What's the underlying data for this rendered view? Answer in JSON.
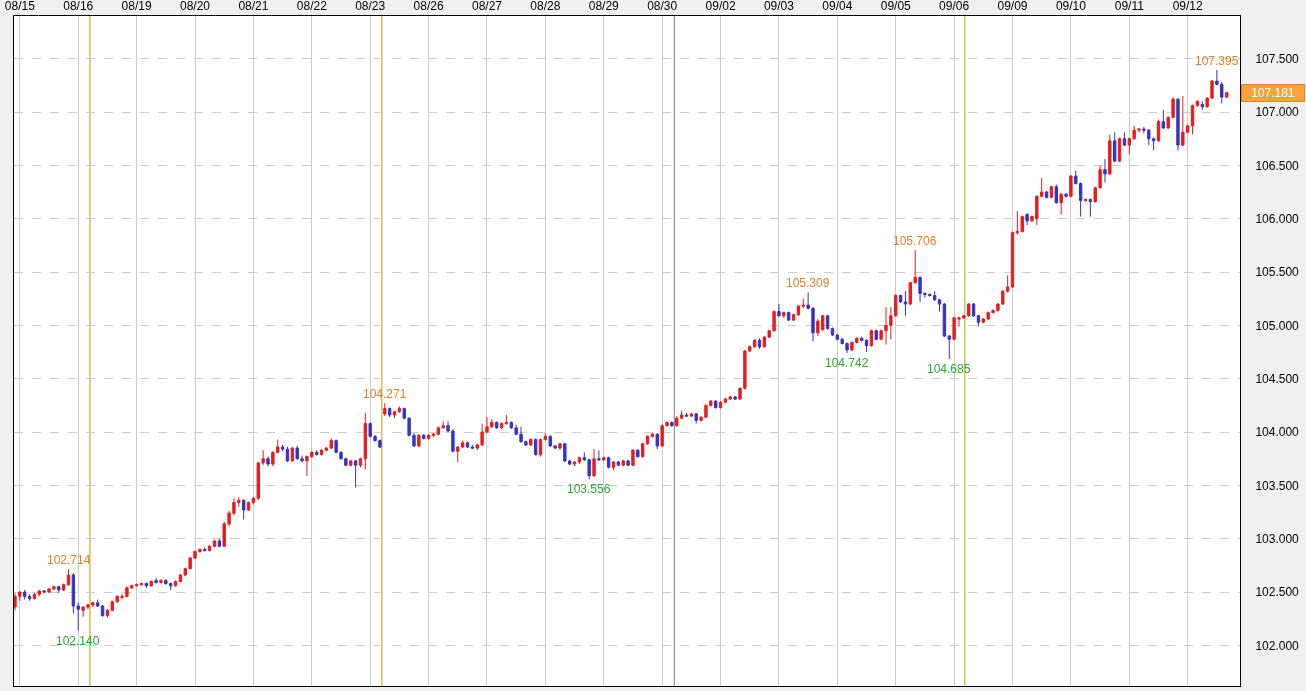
{
  "chart_data": {
    "type": "candlestick",
    "categories": [
      null,
      "08/15",
      null,
      null,
      null,
      null,
      null,
      null,
      null,
      null,
      null,
      null,
      null,
      "08/16",
      null,
      null,
      null,
      null,
      null,
      null,
      null,
      null,
      null,
      null,
      null,
      "08/19",
      null,
      null,
      null,
      null,
      null,
      null,
      null,
      null,
      null,
      null,
      null,
      "08/20",
      null,
      null,
      null,
      null,
      null,
      null,
      null,
      null,
      null,
      null,
      null,
      "08/21",
      null,
      null,
      null,
      null,
      null,
      null,
      null,
      null,
      null,
      null,
      null,
      "08/22",
      null,
      null,
      null,
      null,
      null,
      null,
      null,
      null,
      null,
      null,
      null,
      "08/23",
      null,
      null,
      null,
      null,
      null,
      null,
      null,
      null,
      null,
      null,
      null,
      "08/26",
      null,
      null,
      null,
      null,
      null,
      null,
      null,
      null,
      null,
      null,
      null,
      "08/27",
      null,
      null,
      null,
      null,
      null,
      null,
      null,
      null,
      null,
      null,
      null,
      "08/28",
      null,
      null,
      null,
      null,
      null,
      null,
      null,
      null,
      null,
      null,
      null,
      "08/29",
      null,
      null,
      null,
      null,
      null,
      null,
      null,
      null,
      null,
      null,
      null,
      "08/30",
      null,
      null,
      null,
      null,
      null,
      null,
      null,
      null,
      null,
      null,
      null,
      "09/02",
      null,
      null,
      null,
      null,
      null,
      null,
      null,
      null,
      null,
      null,
      null,
      "09/03",
      null,
      null,
      null,
      null,
      null,
      null,
      null,
      null,
      null,
      null,
      null,
      "09/04",
      null,
      null,
      null,
      null,
      null,
      null,
      null,
      null,
      null,
      null,
      null,
      "09/05",
      null,
      null,
      null,
      null,
      null,
      null,
      null,
      null,
      null,
      null,
      null,
      "09/06",
      null,
      null,
      null,
      null,
      null,
      null,
      null,
      null,
      null,
      null,
      null,
      "09/09",
      null,
      null,
      null,
      null,
      null,
      null,
      null,
      null,
      null,
      null,
      null,
      "09/10",
      null,
      null,
      null,
      null,
      null,
      null,
      null,
      null,
      null,
      null,
      null,
      "09/11",
      null,
      null,
      null,
      null,
      null,
      null,
      null,
      null,
      null,
      null,
      null,
      "09/12",
      null,
      null,
      null,
      null,
      null,
      null,
      null,
      null
    ],
    "ohlc": [
      [
        102.36,
        102.49,
        102.33,
        102.46
      ],
      [
        102.46,
        102.51,
        102.42,
        102.5
      ],
      [
        102.5,
        102.52,
        102.43,
        102.46
      ],
      [
        102.46,
        102.48,
        102.42,
        102.44
      ],
      [
        102.44,
        102.49,
        102.43,
        102.48
      ],
      [
        102.48,
        102.52,
        102.46,
        102.51
      ],
      [
        102.51,
        102.52,
        102.49,
        102.5
      ],
      [
        102.5,
        102.54,
        102.49,
        102.53
      ],
      [
        102.53,
        102.56,
        102.52,
        102.55
      ],
      [
        102.55,
        102.56,
        102.49,
        102.52
      ],
      [
        102.52,
        102.58,
        102.51,
        102.57
      ],
      [
        102.57,
        102.714,
        102.56,
        102.66
      ],
      [
        102.66,
        102.68,
        102.3,
        102.37
      ],
      [
        102.37,
        102.4,
        102.14,
        102.34
      ],
      [
        102.33,
        102.37,
        102.27,
        102.36
      ],
      [
        102.36,
        102.39,
        102.34,
        102.38
      ],
      [
        102.38,
        102.41,
        102.36,
        102.4
      ],
      [
        102.4,
        102.43,
        102.36,
        102.37
      ],
      [
        102.37,
        102.38,
        102.27,
        102.28
      ],
      [
        102.28,
        102.34,
        102.26,
        102.33
      ],
      [
        102.33,
        102.42,
        102.32,
        102.41
      ],
      [
        102.41,
        102.47,
        102.4,
        102.46
      ],
      [
        102.45,
        102.48,
        102.43,
        102.46
      ],
      [
        102.46,
        102.55,
        102.45,
        102.54
      ],
      [
        102.54,
        102.57,
        102.53,
        102.56
      ],
      [
        102.56,
        102.58,
        102.55,
        102.57
      ],
      [
        102.57,
        102.59,
        102.56,
        102.58
      ],
      [
        102.58,
        102.59,
        102.54,
        102.56
      ],
      [
        102.56,
        102.61,
        102.55,
        102.6
      ],
      [
        102.61,
        102.63,
        102.58,
        102.59
      ],
      [
        102.59,
        102.62,
        102.58,
        102.61
      ],
      [
        102.61,
        102.62,
        102.57,
        102.58
      ],
      [
        102.58,
        102.59,
        102.52,
        102.56
      ],
      [
        102.56,
        102.61,
        102.55,
        102.6
      ],
      [
        102.6,
        102.67,
        102.59,
        102.66
      ],
      [
        102.66,
        102.73,
        102.65,
        102.72
      ],
      [
        102.72,
        102.83,
        102.71,
        102.82
      ],
      [
        102.82,
        102.89,
        102.81,
        102.88
      ],
      [
        102.88,
        102.91,
        102.87,
        102.9
      ],
      [
        102.9,
        102.92,
        102.88,
        102.89
      ],
      [
        102.89,
        102.94,
        102.88,
        102.93
      ],
      [
        102.93,
        102.99,
        102.92,
        102.98
      ],
      [
        102.98,
        103.0,
        102.92,
        102.93
      ],
      [
        102.93,
        103.16,
        102.92,
        103.14
      ],
      [
        103.14,
        103.26,
        103.12,
        103.24
      ],
      [
        103.24,
        103.38,
        103.22,
        103.34
      ],
      [
        103.34,
        103.39,
        103.3,
        103.36
      ],
      [
        103.36,
        103.37,
        103.18,
        103.27
      ],
      [
        103.27,
        103.35,
        103.26,
        103.34
      ],
      [
        103.34,
        103.39,
        103.32,
        103.38
      ],
      [
        103.38,
        103.72,
        103.36,
        103.71
      ],
      [
        103.71,
        103.83,
        103.69,
        103.75
      ],
      [
        103.75,
        103.77,
        103.68,
        103.7
      ],
      [
        103.7,
        103.82,
        103.68,
        103.81
      ],
      [
        103.81,
        103.93,
        103.8,
        103.86
      ],
      [
        103.86,
        103.88,
        103.82,
        103.84
      ],
      [
        103.84,
        103.86,
        103.72,
        103.73
      ],
      [
        103.73,
        103.86,
        103.72,
        103.85
      ],
      [
        103.85,
        103.87,
        103.74,
        103.75
      ],
      [
        103.75,
        103.78,
        103.72,
        103.73
      ],
      [
        103.73,
        103.78,
        103.59,
        103.77
      ],
      [
        103.77,
        103.82,
        103.76,
        103.81
      ],
      [
        103.81,
        103.83,
        103.78,
        103.79
      ],
      [
        103.79,
        103.84,
        103.78,
        103.83
      ],
      [
        103.83,
        103.86,
        103.82,
        103.85
      ],
      [
        103.85,
        103.94,
        103.84,
        103.92
      ],
      [
        103.92,
        103.93,
        103.8,
        103.81
      ],
      [
        103.81,
        103.82,
        103.74,
        103.75
      ],
      [
        103.75,
        103.76,
        103.68,
        103.69
      ],
      [
        103.69,
        103.74,
        103.68,
        103.73
      ],
      [
        103.73,
        103.74,
        103.48,
        103.69
      ],
      [
        103.69,
        103.76,
        103.67,
        103.75
      ],
      [
        103.75,
        104.18,
        103.65,
        104.08
      ],
      [
        104.08,
        104.09,
        103.95,
        103.96
      ],
      [
        103.96,
        103.97,
        103.91,
        103.92
      ],
      [
        103.92,
        103.93,
        103.85,
        103.86
      ],
      [
        104.17,
        104.271,
        104.15,
        104.22
      ],
      [
        104.22,
        104.23,
        104.14,
        104.16
      ],
      [
        104.16,
        104.2,
        104.13,
        104.19
      ],
      [
        104.19,
        104.24,
        104.18,
        104.22
      ],
      [
        104.22,
        104.23,
        104.12,
        104.13
      ],
      [
        104.13,
        104.14,
        103.96,
        103.97
      ],
      [
        103.97,
        103.99,
        103.86,
        103.87
      ],
      [
        103.87,
        103.98,
        103.86,
        103.97
      ],
      [
        103.97,
        103.98,
        103.93,
        103.94
      ],
      [
        103.94,
        103.98,
        103.93,
        103.97
      ],
      [
        103.97,
        103.99,
        103.95,
        103.98
      ],
      [
        103.98,
        104.05,
        103.97,
        104.04
      ],
      [
        104.04,
        104.1,
        104.03,
        104.06
      ],
      [
        104.06,
        104.1,
        104.0,
        104.01
      ],
      [
        104.01,
        104.03,
        103.81,
        103.82
      ],
      [
        103.82,
        103.87,
        103.72,
        103.86
      ],
      [
        103.86,
        103.92,
        103.85,
        103.9
      ],
      [
        103.9,
        103.91,
        103.85,
        103.86
      ],
      [
        103.86,
        103.88,
        103.84,
        103.85
      ],
      [
        103.85,
        103.89,
        103.83,
        103.88
      ],
      [
        103.88,
        104.08,
        103.87,
        104.0
      ],
      [
        104.0,
        104.14,
        103.99,
        104.05
      ],
      [
        104.05,
        104.12,
        104.04,
        104.09
      ],
      [
        104.09,
        104.1,
        104.03,
        104.04
      ],
      [
        104.04,
        104.09,
        104.03,
        104.08
      ],
      [
        104.08,
        104.16,
        104.07,
        104.09
      ],
      [
        104.09,
        104.1,
        104.03,
        104.04
      ],
      [
        104.04,
        104.07,
        103.97,
        103.98
      ],
      [
        103.98,
        104.05,
        103.9,
        103.91
      ],
      [
        103.91,
        103.92,
        103.87,
        103.88
      ],
      [
        103.88,
        103.94,
        103.87,
        103.93
      ],
      [
        103.93,
        103.94,
        103.78,
        103.79
      ],
      [
        103.79,
        103.94,
        103.77,
        103.93
      ],
      [
        103.93,
        103.99,
        103.92,
        103.96
      ],
      [
        103.96,
        103.97,
        103.86,
        103.87
      ],
      [
        103.87,
        103.88,
        103.84,
        103.85
      ],
      [
        103.85,
        103.9,
        103.83,
        103.89
      ],
      [
        103.89,
        103.9,
        103.72,
        103.73
      ],
      [
        103.73,
        103.74,
        103.69,
        103.7
      ],
      [
        103.7,
        103.73,
        103.68,
        103.72
      ],
      [
        103.72,
        103.77,
        103.7,
        103.76
      ],
      [
        103.76,
        103.81,
        103.73,
        103.74
      ],
      [
        103.74,
        103.75,
        103.556,
        103.59
      ],
      [
        103.59,
        103.84,
        103.58,
        103.75
      ],
      [
        103.75,
        103.83,
        103.73,
        103.74
      ],
      [
        103.74,
        103.77,
        103.73,
        103.76
      ],
      [
        103.76,
        103.77,
        103.66,
        103.67
      ],
      [
        103.67,
        103.73,
        103.64,
        103.72
      ],
      [
        103.72,
        103.73,
        103.68,
        103.69
      ],
      [
        103.69,
        103.74,
        103.68,
        103.73
      ],
      [
        103.73,
        103.74,
        103.68,
        103.69
      ],
      [
        103.69,
        103.84,
        103.68,
        103.83
      ],
      [
        103.83,
        103.84,
        103.76,
        103.77
      ],
      [
        103.77,
        103.9,
        103.76,
        103.89
      ],
      [
        103.89,
        103.97,
        103.88,
        103.96
      ],
      [
        103.96,
        103.99,
        103.95,
        103.98
      ],
      [
        103.98,
        103.99,
        103.84,
        103.87
      ],
      [
        103.87,
        104.07,
        103.86,
        104.06
      ],
      [
        104.06,
        104.1,
        104.05,
        104.09
      ],
      [
        104.09,
        104.1,
        104.05,
        104.06
      ],
      [
        104.06,
        104.15,
        104.05,
        104.13
      ],
      [
        104.13,
        104.2,
        104.12,
        104.16
      ],
      [
        104.16,
        104.18,
        104.14,
        104.15
      ],
      [
        104.15,
        104.18,
        104.14,
        104.17
      ],
      [
        104.17,
        104.18,
        104.08,
        104.11
      ],
      [
        104.11,
        104.15,
        104.1,
        104.14
      ],
      [
        104.14,
        104.26,
        104.13,
        104.25
      ],
      [
        104.25,
        104.3,
        104.24,
        104.29
      ],
      [
        104.29,
        104.3,
        104.22,
        104.23
      ],
      [
        104.23,
        104.29,
        104.22,
        104.28
      ],
      [
        104.28,
        104.32,
        104.27,
        104.31
      ],
      [
        104.31,
        104.34,
        104.3,
        104.33
      ],
      [
        104.33,
        104.34,
        104.3,
        104.31
      ],
      [
        104.31,
        104.42,
        104.3,
        104.41
      ],
      [
        104.41,
        104.77,
        104.4,
        104.76
      ],
      [
        104.76,
        104.81,
        104.75,
        104.8
      ],
      [
        104.8,
        104.87,
        104.79,
        104.86
      ],
      [
        104.86,
        104.88,
        104.78,
        104.8
      ],
      [
        104.8,
        104.9,
        104.79,
        104.89
      ],
      [
        104.89,
        104.96,
        104.88,
        104.95
      ],
      [
        104.95,
        105.14,
        104.94,
        105.13
      ],
      [
        105.13,
        105.2,
        105.08,
        105.09
      ],
      [
        105.09,
        105.13,
        105.07,
        105.12
      ],
      [
        105.12,
        105.13,
        105.04,
        105.05
      ],
      [
        105.05,
        105.11,
        105.04,
        105.1
      ],
      [
        105.1,
        105.19,
        105.09,
        105.18
      ],
      [
        105.18,
        105.25,
        105.16,
        105.19
      ],
      [
        105.19,
        105.309,
        105.15,
        105.16
      ],
      [
        105.16,
        105.17,
        104.85,
        104.93
      ],
      [
        104.93,
        105.06,
        104.9,
        105.04
      ],
      [
        104.96,
        105.1,
        104.95,
        105.09
      ],
      [
        105.09,
        105.1,
        104.96,
        104.97
      ],
      [
        104.97,
        104.98,
        104.9,
        104.91
      ],
      [
        104.91,
        104.92,
        104.86,
        104.87
      ],
      [
        104.87,
        104.88,
        104.82,
        104.83
      ],
      [
        104.83,
        104.84,
        104.742,
        104.77
      ],
      [
        104.77,
        104.85,
        104.76,
        104.84
      ],
      [
        104.84,
        104.89,
        104.83,
        104.88
      ],
      [
        104.88,
        104.89,
        104.85,
        104.86
      ],
      [
        104.86,
        104.87,
        104.75,
        104.81
      ],
      [
        104.81,
        104.96,
        104.8,
        104.95
      ],
      [
        104.95,
        104.96,
        104.86,
        104.87
      ],
      [
        104.87,
        104.96,
        104.86,
        104.95
      ],
      [
        104.95,
        105.17,
        104.82,
        105.0
      ],
      [
        105.0,
        105.17,
        104.87,
        105.09
      ],
      [
        105.09,
        105.29,
        105.08,
        105.28
      ],
      [
        105.28,
        105.29,
        105.21,
        105.22
      ],
      [
        105.22,
        105.32,
        105.09,
        105.2
      ],
      [
        105.2,
        105.41,
        105.19,
        105.4
      ],
      [
        105.4,
        105.706,
        105.39,
        105.45
      ],
      [
        105.45,
        105.46,
        105.22,
        105.3
      ],
      [
        105.3,
        105.31,
        105.26,
        105.29
      ],
      [
        105.29,
        105.3,
        105.27,
        105.28
      ],
      [
        105.28,
        105.32,
        105.23,
        105.24
      ],
      [
        105.24,
        105.25,
        105.13,
        105.2
      ],
      [
        105.2,
        105.21,
        104.89,
        104.9
      ],
      [
        104.9,
        104.91,
        104.685,
        104.87
      ],
      [
        104.87,
        105.08,
        104.86,
        105.07
      ],
      [
        105.06,
        105.08,
        104.99,
        105.07
      ],
      [
        105.07,
        105.1,
        105.06,
        105.09
      ],
      [
        105.09,
        105.21,
        105.08,
        105.2
      ],
      [
        105.2,
        105.21,
        105.08,
        105.09
      ],
      [
        105.09,
        105.1,
        104.99,
        105.03
      ],
      [
        105.03,
        105.07,
        105.02,
        105.06
      ],
      [
        105.06,
        105.13,
        105.05,
        105.12
      ],
      [
        105.12,
        105.15,
        105.11,
        105.14
      ],
      [
        105.14,
        105.21,
        105.13,
        105.2
      ],
      [
        105.2,
        105.33,
        105.19,
        105.32
      ],
      [
        105.32,
        105.47,
        105.31,
        105.36
      ],
      [
        105.36,
        105.88,
        105.35,
        105.87
      ],
      [
        105.87,
        106.07,
        105.85,
        105.88
      ],
      [
        105.88,
        106.03,
        105.87,
        106.02
      ],
      [
        106.04,
        106.05,
        105.94,
        105.98
      ],
      [
        105.98,
        106.03,
        105.97,
        106.02
      ],
      [
        106.0,
        106.22,
        105.94,
        106.21
      ],
      [
        106.21,
        106.38,
        106.2,
        106.25
      ],
      [
        106.25,
        106.26,
        106.19,
        106.2
      ],
      [
        106.2,
        106.31,
        106.19,
        106.3
      ],
      [
        106.3,
        106.32,
        106.14,
        106.15
      ],
      [
        106.15,
        106.24,
        106.04,
        106.23
      ],
      [
        106.23,
        106.24,
        106.2,
        106.21
      ],
      [
        106.21,
        106.41,
        106.2,
        106.4
      ],
      [
        106.4,
        106.45,
        106.32,
        106.33
      ],
      [
        106.33,
        106.34,
        106.02,
        106.17
      ],
      [
        106.17,
        106.19,
        106.16,
        106.18
      ],
      [
        106.18,
        106.19,
        106.02,
        106.16
      ],
      [
        106.16,
        106.3,
        106.15,
        106.29
      ],
      [
        106.29,
        106.5,
        106.28,
        106.46
      ],
      [
        106.46,
        106.56,
        106.34,
        106.42
      ],
      [
        106.42,
        106.79,
        106.41,
        106.73
      ],
      [
        106.73,
        106.81,
        106.53,
        106.54
      ],
      [
        106.54,
        106.76,
        106.53,
        106.75
      ],
      [
        106.75,
        106.81,
        106.68,
        106.69
      ],
      [
        106.69,
        106.76,
        106.6,
        106.75
      ],
      [
        106.75,
        106.87,
        106.74,
        106.83
      ],
      [
        106.83,
        106.85,
        106.81,
        106.84
      ],
      [
        106.84,
        106.86,
        106.8,
        106.83
      ],
      [
        106.83,
        106.84,
        106.69,
        106.75
      ],
      [
        106.75,
        106.76,
        106.64,
        106.73
      ],
      [
        106.73,
        106.93,
        106.72,
        106.91
      ],
      [
        106.91,
        107.02,
        106.84,
        106.85
      ],
      [
        106.85,
        106.96,
        106.84,
        106.95
      ],
      [
        106.95,
        107.14,
        106.94,
        107.12
      ],
      [
        107.12,
        107.13,
        106.64,
        106.69
      ],
      [
        106.69,
        107.15,
        106.68,
        106.81
      ],
      [
        106.81,
        106.88,
        106.8,
        106.87
      ],
      [
        106.87,
        107.07,
        106.79,
        107.06
      ],
      [
        107.06,
        107.11,
        107.05,
        107.1
      ],
      [
        107.07,
        107.1,
        107.02,
        107.05
      ],
      [
        107.05,
        107.14,
        107.04,
        107.13
      ],
      [
        107.13,
        107.3,
        107.12,
        107.29
      ],
      [
        107.29,
        107.395,
        107.25,
        107.26
      ],
      [
        107.26,
        107.28,
        107.08,
        107.14
      ],
      [
        107.14,
        107.19,
        107.13,
        107.181
      ]
    ],
    "colors": [
      "#e41e1e",
      "#e41e1e",
      "#3434c4",
      "#3434c4",
      "#e41e1e",
      "#e41e1e",
      "#3434c4",
      "#e41e1e",
      "#e41e1e",
      "#3434c4",
      "#e41e1e",
      "#e41e1e",
      "#3434c4",
      "#3434c4",
      "#e41e1e",
      "#e41e1e",
      "#e41e1e",
      "#3434c4",
      "#3434c4",
      "#e41e1e",
      "#e41e1e",
      "#e41e1e",
      "#e41e1e",
      "#e41e1e",
      "#e41e1e",
      "#e41e1e",
      "#e41e1e",
      "#3434c4",
      "#e41e1e",
      "#3434c4",
      "#e41e1e",
      "#3434c4",
      "#3434c4",
      "#e41e1e",
      "#e41e1e",
      "#e41e1e",
      "#e41e1e",
      "#e41e1e",
      "#e41e1e",
      "#3434c4",
      "#e41e1e",
      "#e41e1e",
      "#3434c4",
      "#e41e1e",
      "#e41e1e",
      "#e41e1e",
      "#e41e1e",
      "#3434c4",
      "#e41e1e",
      "#e41e1e",
      "#e41e1e",
      "#e41e1e",
      "#3434c4",
      "#e41e1e",
      "#e41e1e",
      "#3434c4",
      "#3434c4",
      "#e41e1e",
      "#3434c4",
      "#3434c4",
      "#e41e1e",
      "#e41e1e",
      "#3434c4",
      "#e41e1e",
      "#e41e1e",
      "#e41e1e",
      "#3434c4",
      "#3434c4",
      "#3434c4",
      "#e41e1e",
      "#3434c4",
      "#e41e1e",
      "#e41e1e",
      "#3434c4",
      "#3434c4",
      "#3434c4",
      "#e41e1e",
      "#3434c4",
      "#e41e1e",
      "#e41e1e",
      "#3434c4",
      "#3434c4",
      "#3434c4",
      "#e41e1e",
      "#3434c4",
      "#e41e1e",
      "#e41e1e",
      "#e41e1e",
      "#e41e1e",
      "#3434c4",
      "#3434c4",
      "#e41e1e",
      "#e41e1e",
      "#3434c4",
      "#3434c4",
      "#e41e1e",
      "#e41e1e",
      "#e41e1e",
      "#e41e1e",
      "#3434c4",
      "#e41e1e",
      "#e41e1e",
      "#3434c4",
      "#3434c4",
      "#3434c4",
      "#3434c4",
      "#e41e1e",
      "#3434c4",
      "#e41e1e",
      "#e41e1e",
      "#3434c4",
      "#3434c4",
      "#e41e1e",
      "#3434c4",
      "#3434c4",
      "#e41e1e",
      "#e41e1e",
      "#3434c4",
      "#3434c4",
      "#e41e1e",
      "#3434c4",
      "#e41e1e",
      "#3434c4",
      "#e41e1e",
      "#3434c4",
      "#e41e1e",
      "#3434c4",
      "#e41e1e",
      "#3434c4",
      "#e41e1e",
      "#e41e1e",
      "#e41e1e",
      "#3434c4",
      "#e41e1e",
      "#e41e1e",
      "#3434c4",
      "#e41e1e",
      "#e41e1e",
      "#3434c4",
      "#e41e1e",
      "#3434c4",
      "#e41e1e",
      "#e41e1e",
      "#e41e1e",
      "#3434c4",
      "#e41e1e",
      "#e41e1e",
      "#e41e1e",
      "#3434c4",
      "#e41e1e",
      "#e41e1e",
      "#e41e1e",
      "#e41e1e",
      "#3434c4",
      "#e41e1e",
      "#e41e1e",
      "#e41e1e",
      "#3434c4",
      "#e41e1e",
      "#3434c4",
      "#e41e1e",
      "#e41e1e",
      "#e41e1e",
      "#3434c4",
      "#3434c4",
      "#e41e1e",
      "#e41e1e",
      "#3434c4",
      "#3434c4",
      "#3434c4",
      "#3434c4",
      "#3434c4",
      "#e41e1e",
      "#e41e1e",
      "#3434c4",
      "#3434c4",
      "#e41e1e",
      "#3434c4",
      "#e41e1e",
      "#e41e1e",
      "#e41e1e",
      "#e41e1e",
      "#3434c4",
      "#3434c4",
      "#e41e1e",
      "#e41e1e",
      "#3434c4",
      "#3434c4",
      "#3434c4",
      "#3434c4",
      "#3434c4",
      "#3434c4",
      "#3434c4",
      "#e41e1e",
      "#e41e1e",
      "#e41e1e",
      "#e41e1e",
      "#3434c4",
      "#3434c4",
      "#e41e1e",
      "#e41e1e",
      "#e41e1e",
      "#e41e1e",
      "#e41e1e",
      "#e41e1e",
      "#e41e1e",
      "#e41e1e",
      "#e41e1e",
      "#3434c4",
      "#e41e1e",
      "#e41e1e",
      "#e41e1e",
      "#3434c4",
      "#e41e1e",
      "#3434c4",
      "#e41e1e",
      "#3434c4",
      "#e41e1e",
      "#3434c4",
      "#3434c4",
      "#e41e1e",
      "#3434c4",
      "#e41e1e",
      "#e41e1e",
      "#3434c4",
      "#e41e1e",
      "#3434c4",
      "#e41e1e",
      "#3434c4",
      "#e41e1e",
      "#e41e1e",
      "#e41e1e",
      "#3434c4",
      "#3434c4",
      "#3434c4",
      "#e41e1e",
      "#3434c4",
      "#e41e1e",
      "#e41e1e",
      "#3434c4",
      "#e41e1e",
      "#e41e1e",
      "#e41e1e",
      "#e41e1e",
      "#3434c4",
      "#e41e1e",
      "#e41e1e",
      "#3434c4",
      "#3434c4",
      "#e41e1e"
    ],
    "ylim": [
      101.62,
      107.9
    ],
    "yticks": [
      {
        "value": 102,
        "label": "102.000"
      },
      {
        "value": 102.5,
        "label": "102.500"
      },
      {
        "value": 103,
        "label": "103.000"
      },
      {
        "value": 103.5,
        "label": "103.500"
      },
      {
        "value": 104,
        "label": "104.000"
      },
      {
        "value": 104.5,
        "label": "104.500"
      },
      {
        "value": 105,
        "label": "105.000"
      },
      {
        "value": 105.5,
        "label": "105.500"
      },
      {
        "value": 106,
        "label": "106.000"
      },
      {
        "value": 106.5,
        "label": "106.500"
      },
      {
        "value": 107,
        "label": "107.000"
      },
      {
        "value": 107.5,
        "label": "107.500"
      }
    ],
    "grid": true,
    "annotations": [
      {
        "text": "102.714",
        "y": 102.714
      },
      {
        "text": "102.140",
        "y": 102.14
      },
      {
        "text": "104.271",
        "y": 104.271
      },
      {
        "text": "103.556",
        "y": 103.556
      },
      {
        "text": "105.309",
        "y": 105.309
      },
      {
        "text": "104.742",
        "y": 104.742
      },
      {
        "text": "105.706",
        "y": 105.706
      },
      {
        "text": "104.685",
        "y": 104.685
      },
      {
        "text": "107.395",
        "y": 107.395
      },
      "107.181"
    ]
  }
}
